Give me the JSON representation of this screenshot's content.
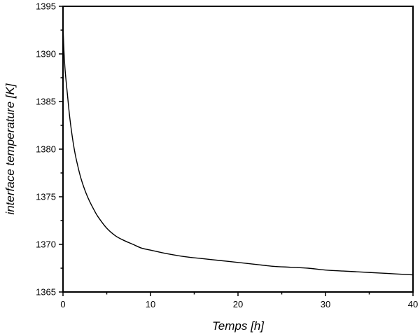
{
  "chart_data": {
    "type": "line",
    "title": "",
    "xlabel": "Temps [h]",
    "ylabel": "interface temperature [K]",
    "xlim": [
      0,
      40
    ],
    "ylim": [
      1365,
      1395
    ],
    "xticks": [
      0,
      10,
      20,
      30,
      40
    ],
    "yticks": [
      1365,
      1370,
      1375,
      1380,
      1385,
      1390,
      1395
    ],
    "grid": false,
    "legend": "none",
    "series": [
      {
        "color": "#000000",
        "x": [
          0,
          0.1,
          0.25,
          0.5,
          0.75,
          1,
          1.25,
          1.5,
          2,
          2.5,
          3,
          3.5,
          4,
          5,
          6,
          7,
          8,
          9,
          10,
          12,
          14,
          16,
          18,
          20,
          22,
          24,
          26,
          28,
          30,
          32,
          34,
          36,
          38,
          40
        ],
        "y": [
          1393.0,
          1390.5,
          1388.2,
          1385.8,
          1383.5,
          1381.7,
          1380.2,
          1379.0,
          1377.1,
          1375.7,
          1374.6,
          1373.7,
          1372.9,
          1371.7,
          1370.9,
          1370.4,
          1370.0,
          1369.6,
          1369.4,
          1369.0,
          1368.7,
          1368.5,
          1368.3,
          1368.1,
          1367.9,
          1367.7,
          1367.6,
          1367.5,
          1367.3,
          1367.2,
          1367.1,
          1367.0,
          1366.9,
          1366.8
        ]
      }
    ]
  }
}
